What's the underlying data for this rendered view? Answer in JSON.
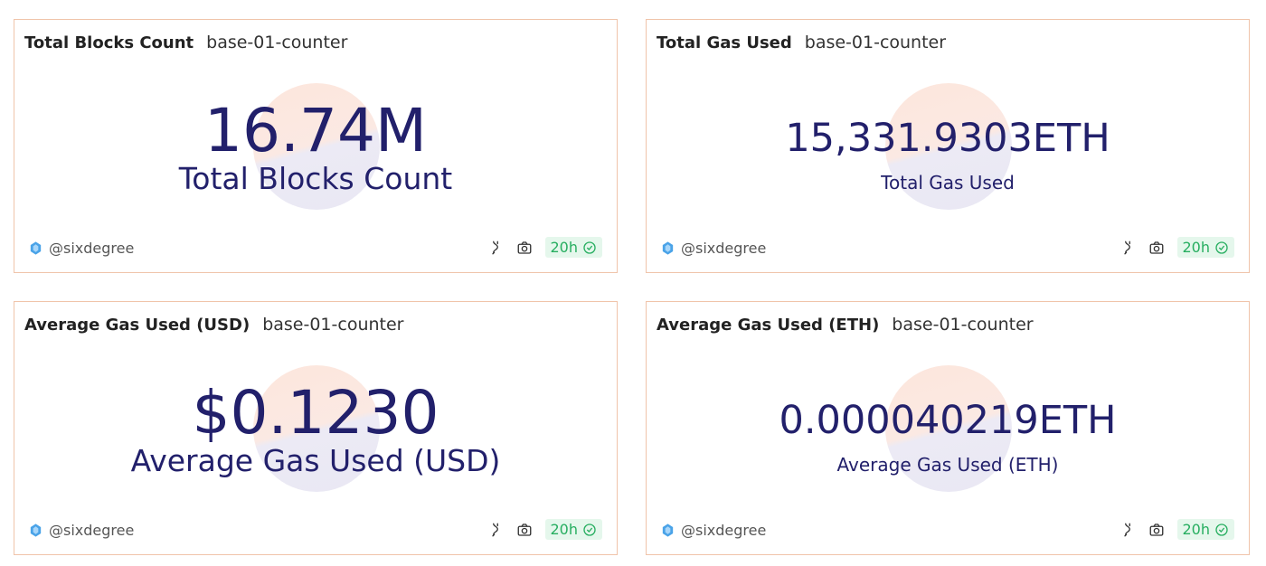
{
  "cards": [
    {
      "title": "Total Blocks Count",
      "subtitle": "base-01-counter",
      "value": "16.74M",
      "label": "Total Blocks Count",
      "author": "@sixdegree",
      "age": "20h"
    },
    {
      "title": "Total Gas Used",
      "subtitle": "base-01-counter",
      "value": "15,331.9303ETH",
      "label": "Total Gas Used",
      "author": "@sixdegree",
      "age": "20h"
    },
    {
      "title": "Average Gas Used (USD)",
      "subtitle": "base-01-counter",
      "value": "$0.1230",
      "label": "Average Gas Used (USD)",
      "author": "@sixdegree",
      "age": "20h"
    },
    {
      "title": "Average Gas Used (ETH)",
      "subtitle": "base-01-counter",
      "value": "0.000040219ETH",
      "label": "Average Gas Used (ETH)",
      "author": "@sixdegree",
      "age": "20h"
    }
  ]
}
